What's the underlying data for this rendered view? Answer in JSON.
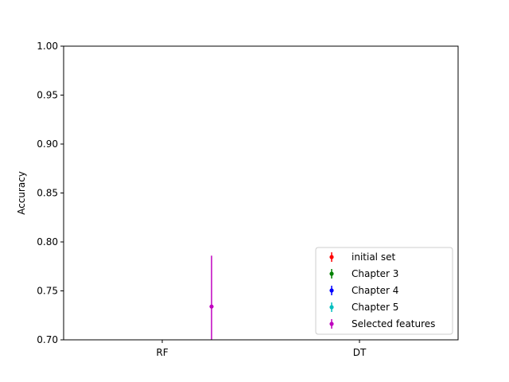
{
  "chart_data": {
    "type": "scatter",
    "title": "",
    "xlabel": "",
    "ylabel": "Accuracy",
    "categories": [
      "RF",
      "DT"
    ],
    "ylim": [
      0.7,
      1.0
    ],
    "yticks": [
      "0.70",
      "0.75",
      "0.80",
      "0.85",
      "0.90",
      "0.95",
      "1.00"
    ],
    "grid": false,
    "legend_position": "bottom-right",
    "series": [
      {
        "name": "initial set",
        "color": "#ff0000",
        "points": []
      },
      {
        "name": "Chapter 3",
        "color": "#008000",
        "points": []
      },
      {
        "name": "Chapter 4",
        "color": "#0000ff",
        "points": []
      },
      {
        "name": "Chapter 5",
        "color": "#00bfbf",
        "points": []
      },
      {
        "name": "Selected features",
        "color": "#bf00bf",
        "points": [
          {
            "category": "RF",
            "offset": 0.25,
            "y": 0.734,
            "err_low": 0.07,
            "err_high": 0.052
          }
        ]
      }
    ]
  }
}
